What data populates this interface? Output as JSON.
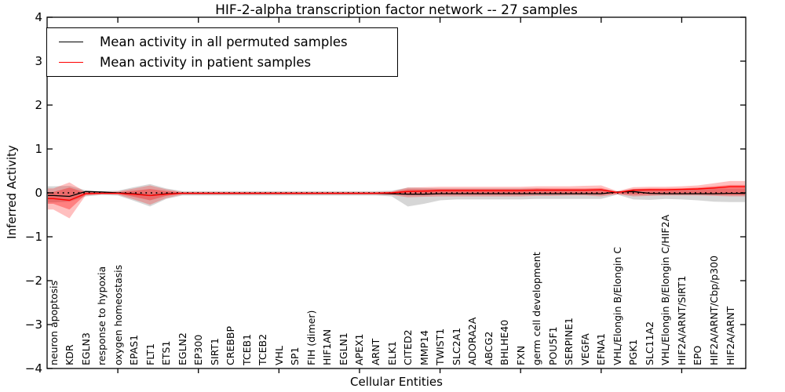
{
  "title": "HIF-2-alpha transcription factor network -- 27 samples",
  "legend": {
    "position": "upper left"
  },
  "chart_data": {
    "type": "line",
    "title": "HIF-2-alpha transcription factor network -- 27 samples",
    "xlabel": "Cellular Entities",
    "ylabel": "Inferred Activity",
    "ylim": [
      -4,
      4
    ],
    "yticks": [
      4,
      3,
      2,
      1,
      0,
      -1,
      -2,
      -3,
      -4
    ],
    "yticklabels": [
      "4",
      "3",
      "2",
      "1",
      "0",
      "−1",
      "−2",
      "−3",
      "−4"
    ],
    "grid": false,
    "zero_line": {
      "style": "dotted",
      "color": "#000000",
      "y": 0
    },
    "legend_position": "upper left",
    "categories": [
      "neuron apoptosis",
      "KDR",
      "EGLN3",
      "response to hypoxia",
      "oxygen homeostasis",
      "EPAS1",
      "FLT1",
      "ETS1",
      "EGLN2",
      "EP300",
      "SIRT1",
      "CREBBP",
      "TCEB1",
      "TCEB2",
      "VHL",
      "SP1",
      "FIH (dimer)",
      "HIF1AN",
      "EGLN1",
      "APEX1",
      "ARNT",
      "ELK1",
      "CITED2",
      "MMP14",
      "TWIST1",
      "SLC2A1",
      "ADORA2A",
      "ABCG2",
      "BHLHE40",
      "FXN",
      "germ cell development",
      "POU5F1",
      "SERPINE1",
      "VEGFA",
      "EFNA1",
      "VHL/Elongin B/Elongin C",
      "PGK1",
      "SLC11A2",
      "VHL/Elongin B/Elongin C/HIF2A",
      "HIF2A/ARNT/SIRT1",
      "EPO",
      "HIF2A/ARNT/Cbp/p300",
      "HIF2A/ARNT"
    ],
    "series": [
      {
        "name": "Mean activity in all permuted samples",
        "color": "#000000",
        "values": [
          -0.06,
          -0.08,
          0.03,
          0.02,
          0.0,
          -0.02,
          -0.06,
          -0.02,
          -0.01,
          -0.01,
          -0.01,
          -0.01,
          -0.01,
          -0.01,
          -0.01,
          -0.01,
          -0.01,
          -0.01,
          -0.01,
          -0.01,
          -0.01,
          -0.02,
          -0.03,
          -0.03,
          -0.02,
          -0.02,
          -0.02,
          -0.02,
          -0.02,
          -0.02,
          -0.02,
          -0.02,
          -0.02,
          -0.02,
          -0.02,
          0.02,
          0.03,
          -0.01,
          -0.02,
          -0.02,
          -0.02,
          -0.02,
          -0.01
        ]
      },
      {
        "name": "Mean activity in patient samples",
        "color": "#ff0000",
        "values": [
          -0.13,
          -0.17,
          -0.02,
          -0.01,
          -0.01,
          -0.03,
          -0.06,
          -0.03,
          -0.01,
          -0.01,
          -0.01,
          -0.01,
          -0.01,
          -0.01,
          -0.01,
          -0.01,
          -0.01,
          -0.01,
          -0.01,
          -0.01,
          -0.01,
          0.0,
          0.03,
          0.04,
          0.05,
          0.05,
          0.05,
          0.05,
          0.05,
          0.05,
          0.06,
          0.06,
          0.06,
          0.06,
          0.07,
          0.01,
          0.06,
          0.07,
          0.07,
          0.08,
          0.09,
          0.11,
          0.14
        ]
      }
    ],
    "bands": [
      {
        "name": "permuted-samples-range",
        "color": "rgba(0,0,0,0.16)",
        "upper": [
          0.15,
          0.16,
          0.06,
          0.04,
          0.05,
          0.13,
          0.2,
          0.1,
          0.04,
          0.04,
          0.04,
          0.04,
          0.04,
          0.04,
          0.04,
          0.04,
          0.04,
          0.04,
          0.04,
          0.04,
          0.04,
          0.05,
          0.12,
          0.11,
          0.1,
          0.1,
          0.1,
          0.1,
          0.1,
          0.1,
          0.1,
          0.09,
          0.09,
          0.09,
          0.09,
          0.03,
          0.09,
          0.09,
          0.08,
          0.09,
          0.1,
          0.1,
          0.1
        ],
        "lower": [
          -0.22,
          -0.2,
          -0.08,
          -0.05,
          -0.06,
          -0.18,
          -0.31,
          -0.14,
          -0.06,
          -0.06,
          -0.06,
          -0.06,
          -0.06,
          -0.06,
          -0.06,
          -0.06,
          -0.06,
          -0.06,
          -0.06,
          -0.06,
          -0.06,
          -0.08,
          -0.31,
          -0.25,
          -0.17,
          -0.15,
          -0.15,
          -0.15,
          -0.15,
          -0.15,
          -0.14,
          -0.14,
          -0.14,
          -0.14,
          -0.14,
          -0.04,
          -0.15,
          -0.16,
          -0.14,
          -0.15,
          -0.17,
          -0.2,
          -0.21
        ]
      },
      {
        "name": "patient-samples-range-outer",
        "color": "rgba(255,0,0,0.25)",
        "upper": [
          0.1,
          0.24,
          0.02,
          0.02,
          0.03,
          0.1,
          0.17,
          0.08,
          0.02,
          0.02,
          0.02,
          0.02,
          0.02,
          0.02,
          0.02,
          0.02,
          0.02,
          0.02,
          0.02,
          0.02,
          0.02,
          0.03,
          0.12,
          0.13,
          0.14,
          0.14,
          0.14,
          0.14,
          0.14,
          0.14,
          0.15,
          0.15,
          0.15,
          0.16,
          0.17,
          0.04,
          0.13,
          0.14,
          0.14,
          0.15,
          0.17,
          0.22,
          0.27
        ],
        "lower": [
          -0.38,
          -0.58,
          -0.06,
          -0.03,
          -0.04,
          -0.15,
          -0.27,
          -0.12,
          -0.04,
          -0.04,
          -0.04,
          -0.04,
          -0.04,
          -0.04,
          -0.04,
          -0.04,
          -0.04,
          -0.04,
          -0.04,
          -0.04,
          -0.04,
          -0.05,
          -0.1,
          -0.09,
          -0.08,
          -0.08,
          -0.08,
          -0.08,
          -0.08,
          -0.08,
          -0.07,
          -0.07,
          -0.06,
          -0.06,
          -0.08,
          -0.03,
          -0.08,
          -0.07,
          -0.06,
          -0.06,
          -0.06,
          -0.07,
          -0.08
        ]
      },
      {
        "name": "patient-samples-range-inner",
        "color": "rgba(255,0,0,0.33)",
        "upper": [
          0.02,
          0.12,
          0.01,
          0.01,
          0.01,
          0.05,
          0.09,
          0.04,
          0.01,
          0.01,
          0.01,
          0.01,
          0.01,
          0.01,
          0.01,
          0.01,
          0.01,
          0.01,
          0.01,
          0.01,
          0.01,
          0.02,
          0.08,
          0.08,
          0.09,
          0.09,
          0.09,
          0.09,
          0.09,
          0.09,
          0.1,
          0.1,
          0.1,
          0.1,
          0.11,
          0.02,
          0.09,
          0.1,
          0.1,
          0.1,
          0.12,
          0.15,
          0.18
        ],
        "lower": [
          -0.25,
          -0.38,
          -0.04,
          -0.02,
          -0.02,
          -0.09,
          -0.17,
          -0.07,
          -0.02,
          -0.02,
          -0.02,
          -0.02,
          -0.02,
          -0.02,
          -0.02,
          -0.02,
          -0.02,
          -0.02,
          -0.02,
          -0.02,
          -0.02,
          -0.03,
          -0.05,
          -0.05,
          -0.04,
          -0.04,
          -0.04,
          -0.04,
          -0.04,
          -0.04,
          -0.03,
          -0.03,
          -0.03,
          -0.03,
          -0.04,
          -0.02,
          -0.04,
          -0.04,
          -0.03,
          -0.03,
          -0.03,
          -0.04,
          -0.05
        ]
      }
    ]
  }
}
